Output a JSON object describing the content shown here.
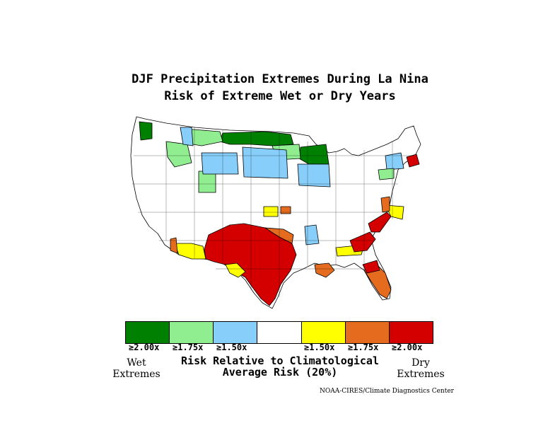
{
  "title_line1": "DJF Precipitation Extremes During La Nina",
  "title_line2": "Risk of Extreme Wet or Dry Years",
  "legend": {
    "colors": [
      "#008000",
      "#90ee90",
      "#87cefa",
      "#ffffff",
      "#ffff00",
      "#e56b1f",
      "#d40000"
    ],
    "tick_labels": [
      "≥2.00x",
      "≥1.75x",
      "≥1.50x",
      "",
      "≥1.50x",
      "≥1.75x",
      "≥2.00x"
    ],
    "wet_label_line1": "Wet",
    "wet_label_line2": "Extremes",
    "dry_label_line1": "Dry",
    "dry_label_line2": "Extremes",
    "caption_line1": "Risk Relative to Climatological",
    "caption_line2": "Average Risk (20%)"
  },
  "credit": "NOAA-CIRES/Climate Diagnostics Center",
  "map_regions": {
    "wet_2x": [
      "northern Minnesota / North Dakota border",
      "northern Wisconsin",
      "western Washington"
    ],
    "wet_175x": [
      "northern Montana",
      "northern North Dakota",
      "Idaho",
      "Utah"
    ],
    "wet_150x": [
      "South Dakota",
      "Nebraska",
      "Iowa",
      "Wyoming",
      "New England interior"
    ],
    "dry_150x": [
      "Arizona",
      "New Mexico south",
      "Virginia",
      "Kansas",
      "Mississippi valley"
    ],
    "dry_175x": [
      "Oklahoma",
      "Louisiana",
      "Carolinas",
      "Florida"
    ],
    "dry_2x": [
      "Texas",
      "southern New Mexico",
      "Georgia",
      "South Carolina",
      "Massachusetts"
    ]
  }
}
